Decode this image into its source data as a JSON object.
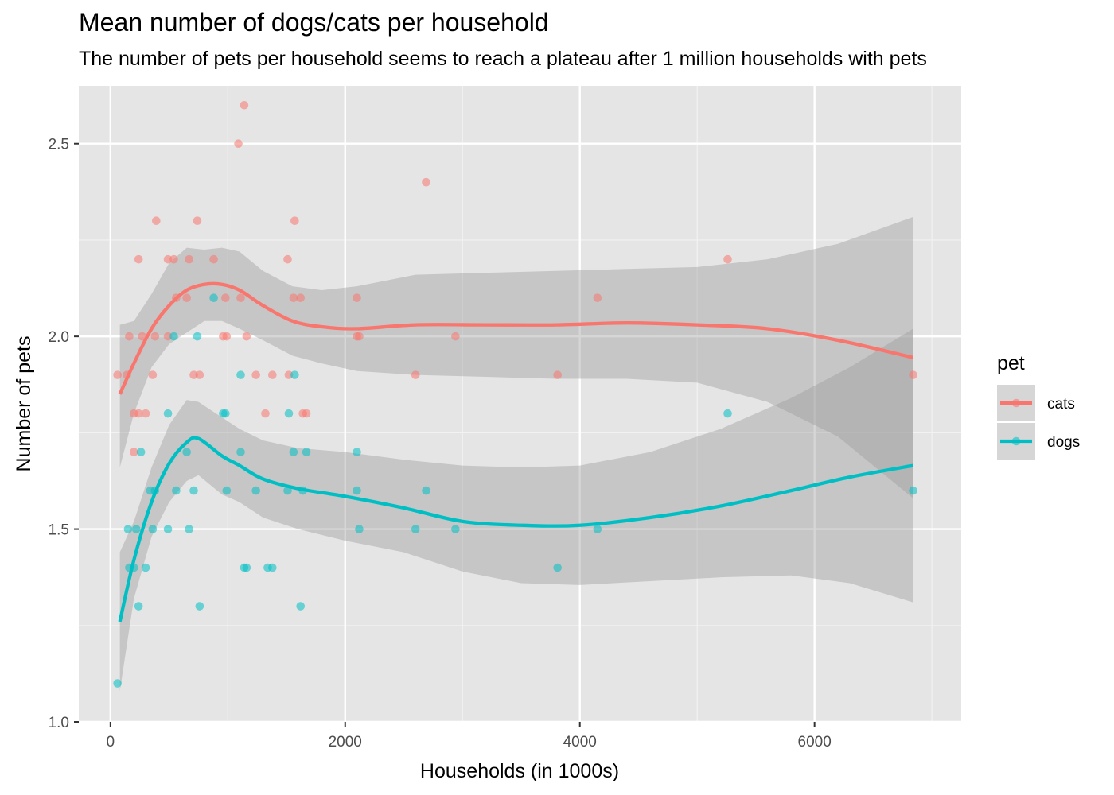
{
  "chart_data": {
    "type": "scatter",
    "title": "Mean number of dogs/cats per household",
    "subtitle": "The number of pets per household seems to reach a plateau after 1 million households with pets",
    "xlabel": "Households (in 1000s)",
    "ylabel": "Number of pets",
    "xlim": [
      -270,
      7250
    ],
    "ylim": [
      1.0,
      2.65
    ],
    "x_ticks": [
      0,
      2000,
      4000,
      6000
    ],
    "y_ticks": [
      1.0,
      1.5,
      2.0,
      2.5
    ],
    "x_tick_labels": [
      "0",
      "2000",
      "4000",
      "6000"
    ],
    "y_tick_labels": [
      "1.0",
      "1.5",
      "2.0",
      "2.5"
    ],
    "grid": true,
    "legend": {
      "title": "pet",
      "position": "right"
    },
    "series": [
      {
        "name": "cats",
        "color": "#F8766D",
        "points": [
          [
            60,
            1.9
          ],
          [
            140,
            1.9
          ],
          [
            160,
            2.0
          ],
          [
            200,
            1.7
          ],
          [
            200,
            1.8
          ],
          [
            240,
            2.2
          ],
          [
            240,
            1.8
          ],
          [
            270,
            2.0
          ],
          [
            300,
            1.8
          ],
          [
            360,
            1.9
          ],
          [
            380,
            2.0
          ],
          [
            390,
            2.3
          ],
          [
            490,
            2.2
          ],
          [
            490,
            2.0
          ],
          [
            540,
            2.2
          ],
          [
            560,
            2.1
          ],
          [
            650,
            2.1
          ],
          [
            670,
            2.2
          ],
          [
            710,
            1.9
          ],
          [
            740,
            2.3
          ],
          [
            760,
            1.9
          ],
          [
            880,
            2.2
          ],
          [
            960,
            2.0
          ],
          [
            980,
            2.1
          ],
          [
            990,
            2.0
          ],
          [
            1090,
            2.5
          ],
          [
            1110,
            2.1
          ],
          [
            1140,
            2.6
          ],
          [
            1160,
            2.0
          ],
          [
            1240,
            1.9
          ],
          [
            1320,
            1.8
          ],
          [
            1380,
            1.9
          ],
          [
            1510,
            2.2
          ],
          [
            1520,
            1.9
          ],
          [
            1560,
            2.1
          ],
          [
            1570,
            2.3
          ],
          [
            1620,
            2.1
          ],
          [
            1640,
            1.8
          ],
          [
            1670,
            1.8
          ],
          [
            2100,
            2.1
          ],
          [
            2100,
            2.0
          ],
          [
            2120,
            2.0
          ],
          [
            2600,
            1.9
          ],
          [
            2690,
            2.4
          ],
          [
            2940,
            2.0
          ],
          [
            3810,
            1.9
          ],
          [
            4150,
            2.1
          ],
          [
            5260,
            2.2
          ],
          [
            6840,
            1.9
          ]
        ],
        "smooth": [
          [
            80,
            1.85
          ],
          [
            200,
            1.93
          ],
          [
            350,
            2.02
          ],
          [
            500,
            2.08
          ],
          [
            650,
            2.12
          ],
          [
            800,
            2.135
          ],
          [
            950,
            2.135
          ],
          [
            1100,
            2.12
          ],
          [
            1300,
            2.08
          ],
          [
            1550,
            2.04
          ],
          [
            1800,
            2.025
          ],
          [
            2100,
            2.02
          ],
          [
            2600,
            2.03
          ],
          [
            3200,
            2.03
          ],
          [
            3800,
            2.03
          ],
          [
            4400,
            2.035
          ],
          [
            5000,
            2.03
          ],
          [
            5600,
            2.02
          ],
          [
            6200,
            1.99
          ],
          [
            6840,
            1.945
          ]
        ],
        "ci_upper": [
          [
            80,
            2.03
          ],
          [
            200,
            2.04
          ],
          [
            350,
            2.11
          ],
          [
            500,
            2.19
          ],
          [
            650,
            2.23
          ],
          [
            800,
            2.225
          ],
          [
            950,
            2.23
          ],
          [
            1100,
            2.22
          ],
          [
            1300,
            2.17
          ],
          [
            1550,
            2.13
          ],
          [
            1800,
            2.12
          ],
          [
            2100,
            2.13
          ],
          [
            2600,
            2.16
          ],
          [
            3200,
            2.165
          ],
          [
            3800,
            2.17
          ],
          [
            4400,
            2.175
          ],
          [
            5000,
            2.18
          ],
          [
            5600,
            2.2
          ],
          [
            6200,
            2.24
          ],
          [
            6840,
            2.31
          ]
        ],
        "ci_lower": [
          [
            80,
            1.66
          ],
          [
            200,
            1.8
          ],
          [
            350,
            1.92
          ],
          [
            500,
            1.98
          ],
          [
            650,
            2.01
          ],
          [
            800,
            2.04
          ],
          [
            950,
            2.04
          ],
          [
            1100,
            2.02
          ],
          [
            1300,
            1.99
          ],
          [
            1550,
            1.95
          ],
          [
            1800,
            1.93
          ],
          [
            2100,
            1.91
          ],
          [
            2600,
            1.9
          ],
          [
            3200,
            1.895
          ],
          [
            3800,
            1.89
          ],
          [
            4400,
            1.89
          ],
          [
            5000,
            1.88
          ],
          [
            5600,
            1.83
          ],
          [
            6200,
            1.74
          ],
          [
            6840,
            1.58
          ]
        ]
      },
      {
        "name": "dogs",
        "color": "#00BFC4",
        "points": [
          [
            60,
            1.1
          ],
          [
            150,
            1.5
          ],
          [
            160,
            1.4
          ],
          [
            200,
            1.4
          ],
          [
            220,
            1.5
          ],
          [
            240,
            1.3
          ],
          [
            260,
            1.7
          ],
          [
            300,
            1.4
          ],
          [
            340,
            1.6
          ],
          [
            360,
            1.5
          ],
          [
            380,
            1.6
          ],
          [
            490,
            1.8
          ],
          [
            490,
            1.5
          ],
          [
            540,
            2.0
          ],
          [
            560,
            1.6
          ],
          [
            650,
            1.7
          ],
          [
            670,
            1.5
          ],
          [
            710,
            1.6
          ],
          [
            740,
            2.0
          ],
          [
            760,
            1.3
          ],
          [
            880,
            2.1
          ],
          [
            960,
            1.8
          ],
          [
            980,
            1.8
          ],
          [
            990,
            1.6
          ],
          [
            1110,
            1.9
          ],
          [
            1110,
            1.7
          ],
          [
            1140,
            1.4
          ],
          [
            1160,
            1.4
          ],
          [
            1240,
            1.6
          ],
          [
            1340,
            1.4
          ],
          [
            1380,
            1.4
          ],
          [
            1510,
            1.6
          ],
          [
            1520,
            1.8
          ],
          [
            1560,
            1.7
          ],
          [
            1570,
            1.9
          ],
          [
            1620,
            1.3
          ],
          [
            1640,
            1.6
          ],
          [
            1670,
            1.7
          ],
          [
            2100,
            1.7
          ],
          [
            2100,
            1.6
          ],
          [
            2120,
            1.5
          ],
          [
            2600,
            1.5
          ],
          [
            2690,
            1.6
          ],
          [
            2940,
            1.5
          ],
          [
            3810,
            1.4
          ],
          [
            4150,
            1.5
          ],
          [
            5260,
            1.8
          ],
          [
            6840,
            1.6
          ]
        ],
        "smooth": [
          [
            80,
            1.26
          ],
          [
            200,
            1.42
          ],
          [
            350,
            1.57
          ],
          [
            500,
            1.67
          ],
          [
            650,
            1.725
          ],
          [
            750,
            1.735
          ],
          [
            950,
            1.69
          ],
          [
            1100,
            1.665
          ],
          [
            1300,
            1.63
          ],
          [
            1600,
            1.605
          ],
          [
            2000,
            1.585
          ],
          [
            2500,
            1.555
          ],
          [
            3000,
            1.52
          ],
          [
            3500,
            1.51
          ],
          [
            4000,
            1.51
          ],
          [
            4600,
            1.53
          ],
          [
            5200,
            1.56
          ],
          [
            5800,
            1.6
          ],
          [
            6300,
            1.635
          ],
          [
            6840,
            1.665
          ]
        ],
        "ci_upper": [
          [
            80,
            1.44
          ],
          [
            200,
            1.52
          ],
          [
            350,
            1.66
          ],
          [
            500,
            1.77
          ],
          [
            650,
            1.835
          ],
          [
            750,
            1.83
          ],
          [
            950,
            1.79
          ],
          [
            1100,
            1.76
          ],
          [
            1300,
            1.73
          ],
          [
            1600,
            1.71
          ],
          [
            2000,
            1.7
          ],
          [
            2500,
            1.68
          ],
          [
            3000,
            1.665
          ],
          [
            3500,
            1.66
          ],
          [
            4000,
            1.665
          ],
          [
            4600,
            1.7
          ],
          [
            5200,
            1.76
          ],
          [
            5800,
            1.84
          ],
          [
            6300,
            1.92
          ],
          [
            6840,
            2.02
          ]
        ],
        "ci_lower": [
          [
            80,
            1.08
          ],
          [
            200,
            1.32
          ],
          [
            350,
            1.48
          ],
          [
            500,
            1.57
          ],
          [
            650,
            1.625
          ],
          [
            750,
            1.64
          ],
          [
            950,
            1.59
          ],
          [
            1100,
            1.57
          ],
          [
            1300,
            1.53
          ],
          [
            1600,
            1.5
          ],
          [
            2000,
            1.47
          ],
          [
            2500,
            1.44
          ],
          [
            3000,
            1.39
          ],
          [
            3500,
            1.36
          ],
          [
            4000,
            1.355
          ],
          [
            4600,
            1.365
          ],
          [
            5200,
            1.375
          ],
          [
            5800,
            1.38
          ],
          [
            6300,
            1.36
          ],
          [
            6840,
            1.31
          ]
        ]
      }
    ]
  }
}
